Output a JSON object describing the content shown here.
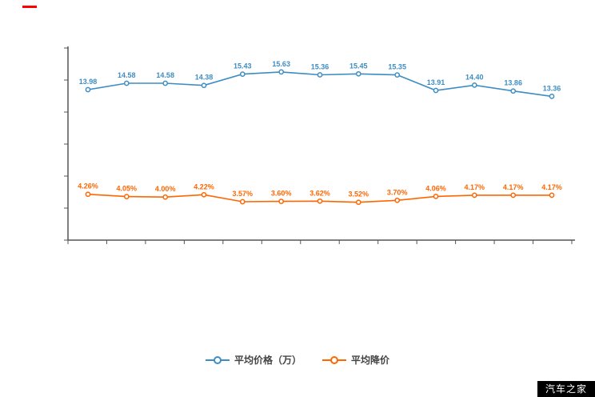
{
  "page": {
    "background": "#ffffff"
  },
  "decor": {
    "red_dash_color": "#ff0000"
  },
  "watermark": {
    "text": "汽车之家",
    "bg": "#000000",
    "color": "#ffffff"
  },
  "legend": [
    {
      "label": "平均价格（万）",
      "color": "#3d8dc4"
    },
    {
      "label": "平均降价",
      "color": "#ff6600"
    }
  ],
  "chart_data": {
    "type": "line",
    "title": "",
    "xlabel": "",
    "ylabel": "",
    "x_tick_labels_visible": false,
    "y_tick_labels_visible": false,
    "grid": false,
    "legend_position": "bottom",
    "ylim": [
      0,
      18
    ],
    "categories": [
      "",
      "",
      "",
      "",
      "",
      "",
      "",
      "",
      "",
      "",
      "",
      "",
      ""
    ],
    "series": [
      {
        "name": "平均价格（万）",
        "color": "#3d8dc4",
        "unit": "万",
        "values": [
          13.98,
          14.58,
          14.58,
          14.38,
          15.43,
          15.63,
          15.36,
          15.45,
          15.35,
          13.91,
          14.4,
          13.86,
          13.36
        ],
        "labels": [
          "13.98",
          "14.58",
          "14.58",
          "14.38",
          "15.43",
          "15.63",
          "15.36",
          "15.45",
          "15.35",
          "13.91",
          "14.40",
          "13.86",
          "13.36"
        ]
      },
      {
        "name": "平均降价",
        "color": "#ff6600",
        "unit": "%",
        "values": [
          4.26,
          4.05,
          4.0,
          4.22,
          3.57,
          3.6,
          3.62,
          3.52,
          3.7,
          4.06,
          4.17,
          4.17,
          4.17
        ],
        "labels": [
          "4.26%",
          "4.05%",
          "4.00%",
          "4.22%",
          "3.57%",
          "3.60%",
          "3.62%",
          "3.52%",
          "3.70%",
          "4.06%",
          "4.17%",
          "4.17%",
          "4.17%"
        ]
      }
    ]
  }
}
